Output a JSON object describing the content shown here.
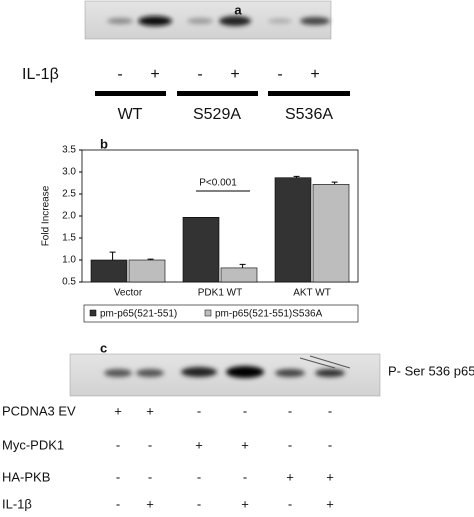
{
  "panel_a": {
    "label": "a",
    "row_label": "IL-1β",
    "signs": [
      "-",
      "+",
      "-",
      "+",
      "-",
      "+"
    ],
    "groups": [
      "WT",
      "S529A",
      "S536A"
    ]
  },
  "chart_data": {
    "type": "bar",
    "label": "b",
    "ylabel": "Fold Increase",
    "categories": [
      "Vector",
      "PDK1 WT",
      "AKT WT"
    ],
    "series": [
      {
        "name": "pm-p65(521-551)",
        "color": "#333333",
        "values": [
          1.0,
          1.97,
          2.87
        ],
        "errors": [
          0.18,
          null,
          0.03
        ]
      },
      {
        "name": "pm-p65(521-551)S536A",
        "color": "#bdbdbd",
        "values": [
          1.0,
          0.82,
          2.72
        ],
        "errors": [
          0.02,
          0.08,
          0.05
        ]
      }
    ],
    "ylim": [
      0.5,
      3.5
    ],
    "yticks": [
      0.5,
      {
        "value": 1,
        "label": "1.0"
      },
      1.5,
      {
        "value": 2,
        "label": "2.0"
      },
      2.5,
      {
        "value": 3,
        "label": "3.0"
      },
      3.5
    ],
    "annotation": "P<0.001"
  },
  "panel_c": {
    "label": "c",
    "blot_label": "P- Ser 536 p65",
    "rows": [
      {
        "label": "PCDNA3 EV",
        "signs": [
          "+",
          "+",
          "-",
          "-",
          "-",
          "-"
        ]
      },
      {
        "label": "Myc-PDK1",
        "signs": [
          "-",
          "-",
          "+",
          "+",
          "-",
          "-"
        ]
      },
      {
        "label": "HA-PKB",
        "signs": [
          "-",
          "-",
          "-",
          "-",
          "+",
          "+"
        ]
      },
      {
        "label": "IL-1β",
        "signs": [
          "-",
          "+",
          "-",
          "+",
          "-",
          "+"
        ]
      }
    ]
  }
}
